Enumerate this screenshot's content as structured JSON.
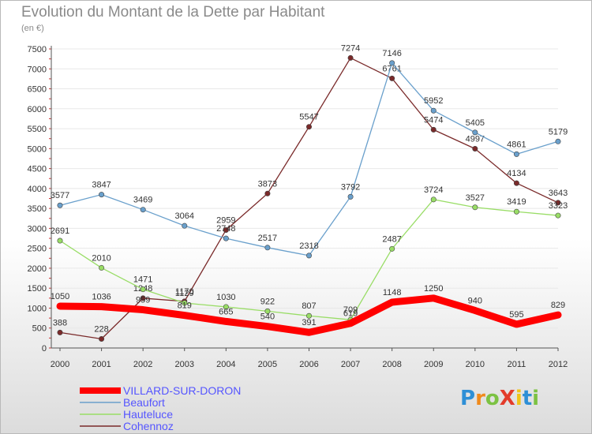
{
  "title": "Evolution du Montant de la Dette par Habitant",
  "subtitle": "(en €)",
  "logo_text": "ProXiti",
  "colors": {
    "VILLARD-SUR-DORON": "#ff0000",
    "Beaufort": "#6aa0cc",
    "Hauteluce": "#99dd66",
    "Cohennoz": "#7a2a2a",
    "legend_text": "#5555ff",
    "axis_text": "#333333",
    "grid": "#e8e8e8"
  },
  "chart_data": {
    "type": "line",
    "title": "Evolution du Montant de la Dette par Habitant",
    "subtitle": "(en €)",
    "x": [
      2000,
      2001,
      2002,
      2003,
      2004,
      2005,
      2006,
      2007,
      2008,
      2009,
      2010,
      2011,
      2012
    ],
    "ylim": [
      0,
      7500
    ],
    "yticks": [
      0,
      500,
      1000,
      1500,
      2000,
      2500,
      3000,
      3500,
      4000,
      4500,
      5000,
      5500,
      6000,
      6500,
      7000,
      7500
    ],
    "grid": true,
    "legend_position": "bottom-left",
    "series": [
      {
        "name": "Cohennoz",
        "values": [
          388,
          228,
          1248,
          1170,
          2959,
          3873,
          5547,
          7274,
          6761,
          5474,
          4997,
          4134,
          3643
        ]
      },
      {
        "name": "Hauteluce",
        "values": [
          2691,
          2010,
          1471,
          1129,
          1030,
          922,
          807,
          709,
          2487,
          3724,
          3527,
          3419,
          3323
        ]
      },
      {
        "name": "Beaufort",
        "values": [
          3577,
          3847,
          3469,
          3064,
          2748,
          2517,
          2318,
          3792,
          7146,
          5952,
          5405,
          4861,
          5179
        ]
      },
      {
        "name": "VILLARD-SUR-DORON",
        "values": [
          1050,
          1036,
          959,
          819,
          665,
          540,
          391,
          619,
          1148,
          1250,
          940,
          595,
          829
        ]
      }
    ]
  },
  "legend": [
    {
      "name": "VILLARD-SUR-DORON"
    },
    {
      "name": "Beaufort"
    },
    {
      "name": "Hauteluce"
    },
    {
      "name": "Cohennoz"
    }
  ]
}
